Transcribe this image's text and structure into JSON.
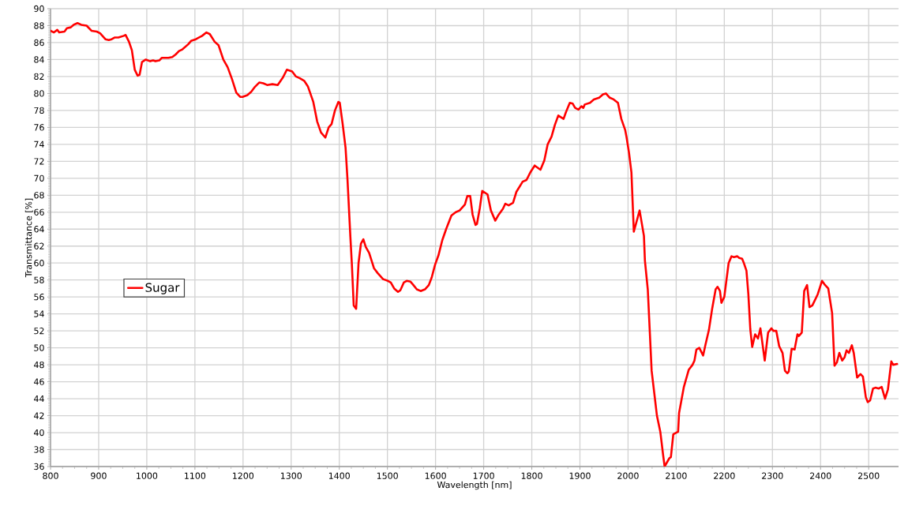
{
  "chart_data": {
    "type": "line",
    "xlabel": "Wavelength [nm]",
    "ylabel": "Transmittance [%]",
    "x": [
      800,
      807,
      814,
      818,
      829,
      834,
      842,
      848,
      856,
      864,
      875,
      885,
      896,
      903,
      914,
      921,
      927,
      933,
      941,
      952,
      956,
      963,
      969,
      975,
      981,
      985,
      990,
      998,
      1007,
      1013,
      1018,
      1026,
      1031,
      1045,
      1053,
      1060,
      1067,
      1074,
      1086,
      1092,
      1102,
      1115,
      1124,
      1131,
      1141,
      1149,
      1159,
      1168,
      1177,
      1186,
      1194,
      1199,
      1209,
      1217,
      1225,
      1234,
      1242,
      1250,
      1261,
      1272,
      1283,
      1291,
      1302,
      1310,
      1318,
      1327,
      1335,
      1346,
      1354,
      1362,
      1371,
      1378,
      1384,
      1391,
      1398,
      1401,
      1407,
      1413,
      1417,
      1423,
      1426,
      1430,
      1435,
      1440,
      1445,
      1450,
      1455,
      1462,
      1472,
      1480,
      1491,
      1501,
      1507,
      1514,
      1522,
      1527,
      1534,
      1540,
      1548,
      1554,
      1561,
      1569,
      1578,
      1586,
      1592,
      1599,
      1606,
      1614,
      1622,
      1633,
      1642,
      1650,
      1661,
      1666,
      1672,
      1677,
      1683,
      1686,
      1692,
      1697,
      1708,
      1715,
      1724,
      1730,
      1740,
      1745,
      1752,
      1761,
      1768,
      1781,
      1789,
      1797,
      1806,
      1818,
      1826,
      1833,
      1841,
      1848,
      1855,
      1866,
      1871,
      1879,
      1885,
      1890,
      1897,
      1903,
      1907,
      1910,
      1921,
      1929,
      1940,
      1948,
      1954,
      1962,
      1970,
      1979,
      1986,
      1994,
      1997,
      2002,
      2007,
      2012,
      2024,
      2033,
      2035,
      2041,
      2049,
      2060,
      2067,
      2073,
      2076,
      2086,
      2089,
      2094,
      2104,
      2106,
      2116,
      2126,
      2134,
      2138,
      2142,
      2148,
      2156,
      2161,
      2168,
      2175,
      2182,
      2186,
      2191,
      2194,
      2200,
      2204,
      2209,
      2215,
      2220,
      2227,
      2231,
      2237,
      2240,
      2246,
      2250,
      2254,
      2258,
      2264,
      2270,
      2275,
      2284,
      2291,
      2298,
      2302,
      2308,
      2314,
      2321,
      2326,
      2331,
      2334,
      2340,
      2346,
      2352,
      2355,
      2361,
      2366,
      2372,
      2377,
      2383,
      2394,
      2403,
      2408,
      2416,
      2424,
      2429,
      2434,
      2439,
      2445,
      2450,
      2454,
      2459,
      2465,
      2469,
      2476,
      2483,
      2488,
      2494,
      2498,
      2503,
      2509,
      2514,
      2521,
      2527,
      2534,
      2540,
      2547,
      2551,
      2559
    ],
    "series": [
      {
        "name": "Sugar",
        "color": "#ff0000",
        "values": [
          87.4,
          87.2,
          87.5,
          87.2,
          87.3,
          87.7,
          87.8,
          88.1,
          88.3,
          88.1,
          88.0,
          87.4,
          87.3,
          87.1,
          86.4,
          86.3,
          86.4,
          86.6,
          86.6,
          86.8,
          86.9,
          86.1,
          85.1,
          82.8,
          82.1,
          82.2,
          83.7,
          84.0,
          83.8,
          83.9,
          83.8,
          83.9,
          84.2,
          84.2,
          84.3,
          84.6,
          85.0,
          85.2,
          85.8,
          86.2,
          86.4,
          86.8,
          87.2,
          87.0,
          86.1,
          85.7,
          84.0,
          83.1,
          81.7,
          80.1,
          79.6,
          79.6,
          79.8,
          80.2,
          80.8,
          81.3,
          81.2,
          81.0,
          81.1,
          81.0,
          81.9,
          82.8,
          82.6,
          82.0,
          81.8,
          81.5,
          80.8,
          79.0,
          76.7,
          75.4,
          74.8,
          76.0,
          76.4,
          78.0,
          79.0,
          78.9,
          76.4,
          73.6,
          69.9,
          63.1,
          60.0,
          55.0,
          54.6,
          60.0,
          62.3,
          62.8,
          61.9,
          61.2,
          59.4,
          58.8,
          58.1,
          57.9,
          57.7,
          57.0,
          56.6,
          56.8,
          57.7,
          57.9,
          57.8,
          57.4,
          56.9,
          56.7,
          56.9,
          57.4,
          58.3,
          59.8,
          60.9,
          62.7,
          64.0,
          65.6,
          66.0,
          66.2,
          66.9,
          67.9,
          67.9,
          65.7,
          64.5,
          64.6,
          66.5,
          68.5,
          68.1,
          66.2,
          65.0,
          65.6,
          66.4,
          67.0,
          66.8,
          67.1,
          68.4,
          69.6,
          69.8,
          70.7,
          71.5,
          71.0,
          72.1,
          74.0,
          74.9,
          76.3,
          77.4,
          77.0,
          77.8,
          78.9,
          78.8,
          78.3,
          78.1,
          78.5,
          78.3,
          78.7,
          78.9,
          79.3,
          79.5,
          79.9,
          80.0,
          79.5,
          79.3,
          78.9,
          77.0,
          75.7,
          74.8,
          73.0,
          70.7,
          63.7,
          66.2,
          63.2,
          60.3,
          56.9,
          47.3,
          42.0,
          40.1,
          37.3,
          36.0,
          37.0,
          37.1,
          39.8,
          40.1,
          42.3,
          45.4,
          47.4,
          48.0,
          48.5,
          49.8,
          50.0,
          49.1,
          50.4,
          52.1,
          54.7,
          56.9,
          57.2,
          56.7,
          55.3,
          56.0,
          57.8,
          60.0,
          60.8,
          60.7,
          60.8,
          60.6,
          60.5,
          60.1,
          59.1,
          56.3,
          52.2,
          50.1,
          51.6,
          51.1,
          52.3,
          48.5,
          51.8,
          52.3,
          52.0,
          52.0,
          50.2,
          49.4,
          47.3,
          47.0,
          47.2,
          49.9,
          49.8,
          51.6,
          51.4,
          51.8,
          56.7,
          57.4,
          54.8,
          55.0,
          56.3,
          57.9,
          57.5,
          57.0,
          54.1,
          47.9,
          48.3,
          49.4,
          48.5,
          48.9,
          49.7,
          49.4,
          50.3,
          49.4,
          46.5,
          46.9,
          46.6,
          44.2,
          43.6,
          43.8,
          45.2,
          45.3,
          45.2,
          45.4,
          44.0,
          45.1,
          48.4,
          48.0,
          48.1
        ]
      }
    ],
    "xlim": [
      800,
      2562
    ],
    "ylim": [
      36,
      90
    ],
    "xticks": [
      800,
      900,
      1000,
      1100,
      1200,
      1300,
      1400,
      1500,
      1600,
      1700,
      1800,
      1900,
      2000,
      2100,
      2200,
      2300,
      2400,
      2500
    ],
    "yticks": [
      36,
      38,
      40,
      42,
      44,
      46,
      48,
      50,
      52,
      54,
      56,
      58,
      60,
      62,
      64,
      66,
      68,
      70,
      72,
      74,
      76,
      78,
      80,
      82,
      84,
      86,
      88,
      90
    ],
    "grid": true,
    "legend": "left",
    "marker": "none",
    "line_style": "solid"
  }
}
